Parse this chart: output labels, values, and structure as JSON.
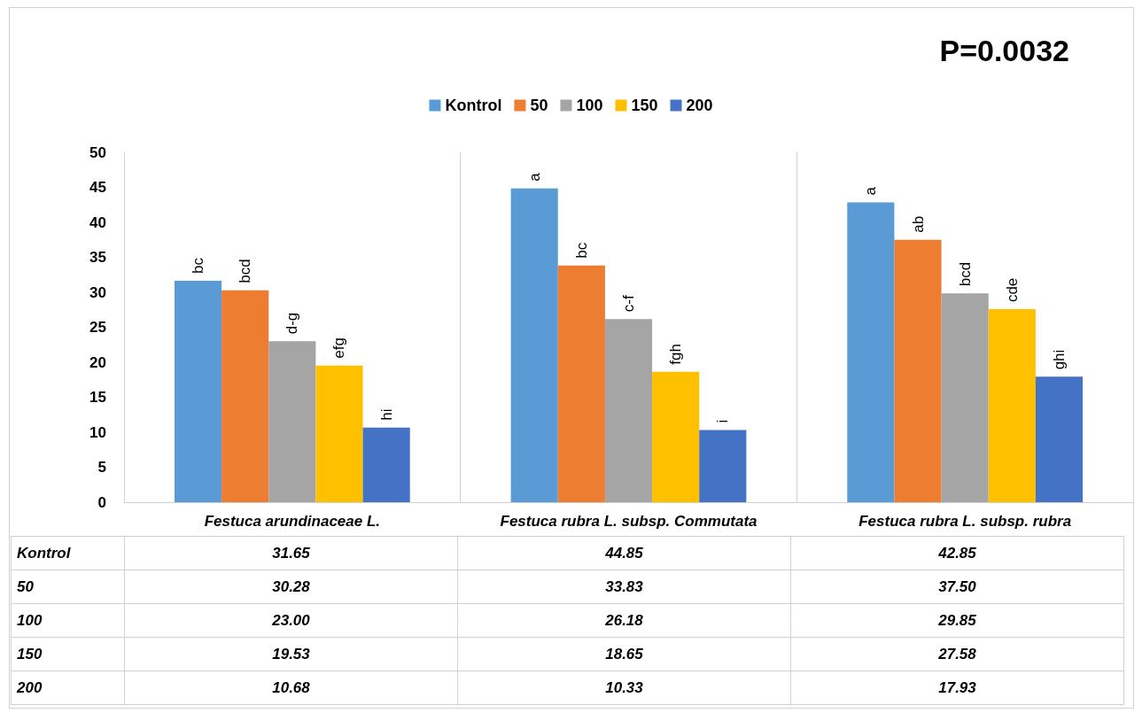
{
  "chart_data": {
    "type": "bar",
    "categories": [
      "Festuca arundinaceae L.",
      "Festuca rubra L. subsp. Commutata",
      "Festuca rubra L. subsp. rubra"
    ],
    "series": [
      {
        "name": "Kontrol",
        "color": "#5b9bd5",
        "values": [
          31.65,
          44.85,
          42.85
        ],
        "value_labels": [
          "31.65",
          "44.85",
          "42.85"
        ]
      },
      {
        "name": "50",
        "color": "#ed7d31",
        "values": [
          30.28,
          33.83,
          37.5
        ],
        "value_labels": [
          "30.28",
          "33.83",
          "37.50"
        ]
      },
      {
        "name": "100",
        "color": "#a5a5a5",
        "values": [
          23.0,
          26.18,
          29.85
        ],
        "value_labels": [
          "23.00",
          "26.18",
          "29.85"
        ]
      },
      {
        "name": "150",
        "color": "#ffc000",
        "values": [
          19.53,
          18.65,
          27.58
        ],
        "value_labels": [
          "19.53",
          "18.65",
          "27.58"
        ]
      },
      {
        "name": "200",
        "color": "#4472c4",
        "values": [
          10.68,
          10.33,
          17.93
        ],
        "value_labels": [
          "10.68",
          "10.33",
          "17.93"
        ]
      }
    ],
    "ylim": [
      0,
      50
    ],
    "yticks": [
      0,
      5,
      10,
      15,
      20,
      25,
      30,
      35,
      40,
      45,
      50
    ],
    "grid": "x",
    "legend": "top",
    "annotations": [
      "P=0.0032",
      "bc",
      "bcd",
      "d-g",
      "efg",
      "hi",
      "a",
      "bc",
      "c-f",
      "fgh",
      "i",
      "a",
      "ab",
      "bcd",
      "cde",
      "ghi"
    ]
  }
}
